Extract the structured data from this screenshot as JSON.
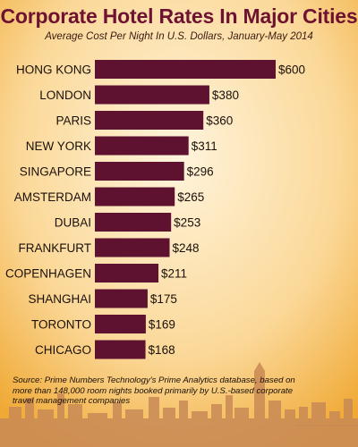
{
  "title": "Corporate Hotel Rates In Major Cities",
  "subtitle": "Average Cost Per Night In U.S. Dollars, January-May 2014",
  "source": "Source: Prime Numbers Technology's Prime Analytics database, based on more than 148,000 room nights booked primarily by U.S.-based corporate travel management companies",
  "colors": {
    "bar": "#5e1230",
    "title": "#6e1232",
    "background_light": "#fdeecd",
    "background_dark": "#f0a935",
    "skyline": "#c98a55"
  },
  "chart_data": {
    "type": "bar",
    "orientation": "horizontal",
    "categories": [
      "HONG KONG",
      "LONDON",
      "PARIS",
      "NEW YORK",
      "SINGAPORE",
      "AMSTERDAM",
      "DUBAI",
      "FRANKFURT",
      "COPENHAGEN",
      "SHANGHAI",
      "TORONTO",
      "CHICAGO"
    ],
    "values": [
      600,
      380,
      360,
      311,
      296,
      265,
      253,
      248,
      211,
      175,
      169,
      168
    ],
    "value_labels": [
      "$600",
      "$380",
      "$360",
      "$311",
      "$296",
      "$265",
      "$253",
      "$248",
      "$211",
      "$175",
      "$169",
      "$168"
    ],
    "title": "Corporate Hotel Rates In Major Cities",
    "xlabel": "",
    "ylabel": "",
    "xlim": [
      0,
      600
    ],
    "grid": false
  }
}
